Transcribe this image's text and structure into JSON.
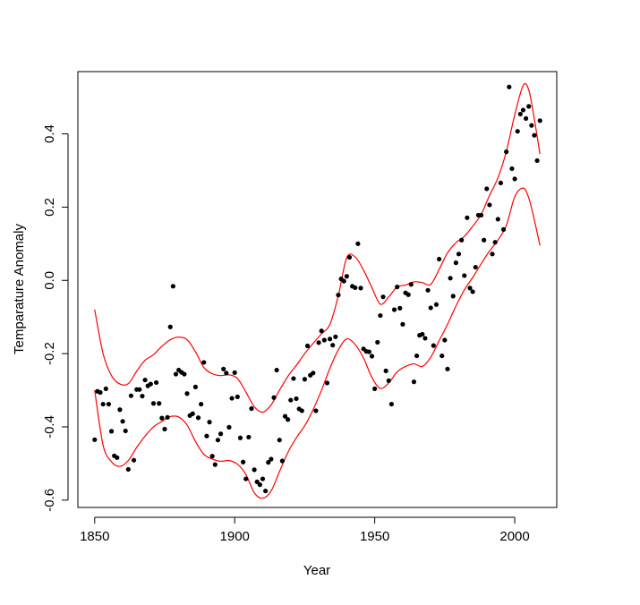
{
  "chart_data": {
    "type": "scatter",
    "title": "",
    "xlabel": "Year",
    "ylabel": "Temparature Anomaly",
    "xlim": [
      1844,
      2015
    ],
    "ylim": [
      -0.62,
      0.57
    ],
    "x_ticks": [
      1850,
      1900,
      1950,
      2000
    ],
    "x_tick_labels": [
      "1850",
      "1900",
      "1950",
      "2000"
    ],
    "y_ticks": [
      -0.6,
      -0.4,
      -0.2,
      0.0,
      0.2,
      0.4
    ],
    "y_tick_labels": [
      "-0.6",
      "-0.4",
      "-0.2",
      "0.0",
      "0.2",
      "0.4"
    ],
    "grid": false,
    "point_color": "#000000",
    "band_color": "#ff0000",
    "points": {
      "x": [
        1850,
        1851,
        1852,
        1853,
        1854,
        1855,
        1856,
        1857,
        1858,
        1859,
        1860,
        1861,
        1862,
        1863,
        1864,
        1865,
        1866,
        1867,
        1868,
        1869,
        1870,
        1871,
        1872,
        1873,
        1874,
        1875,
        1876,
        1877,
        1878,
        1879,
        1880,
        1881,
        1882,
        1883,
        1884,
        1885,
        1886,
        1887,
        1888,
        1889,
        1890,
        1891,
        1892,
        1893,
        1894,
        1895,
        1896,
        1897,
        1898,
        1899,
        1900,
        1901,
        1902,
        1903,
        1904,
        1905,
        1906,
        1907,
        1908,
        1909,
        1910,
        1911,
        1912,
        1913,
        1914,
        1915,
        1916,
        1917,
        1918,
        1919,
        1920,
        1921,
        1922,
        1923,
        1924,
        1925,
        1926,
        1927,
        1928,
        1929,
        1930,
        1931,
        1932,
        1933,
        1934,
        1935,
        1936,
        1937,
        1938,
        1939,
        1940,
        1941,
        1942,
        1943,
        1944,
        1945,
        1946,
        1947,
        1948,
        1949,
        1950,
        1951,
        1952,
        1953,
        1954,
        1955,
        1956,
        1957,
        1958,
        1959,
        1960,
        1961,
        1962,
        1963,
        1964,
        1965,
        1966,
        1967,
        1968,
        1969,
        1970,
        1971,
        1972,
        1973,
        1974,
        1975,
        1976,
        1977,
        1978,
        1979,
        1980,
        1981,
        1982,
        1983,
        1984,
        1985,
        1986,
        1987,
        1988,
        1989,
        1990,
        1991,
        1992,
        1993,
        1994,
        1995,
        1996,
        1997,
        1998,
        1999,
        2000,
        2001,
        2002,
        2003,
        2004,
        2005,
        2006,
        2007,
        2008,
        2009
      ],
      "y": [
        -0.435,
        -0.303,
        -0.306,
        -0.338,
        -0.296,
        -0.338,
        -0.412,
        -0.479,
        -0.484,
        -0.353,
        -0.385,
        -0.411,
        -0.516,
        -0.315,
        -0.491,
        -0.298,
        -0.298,
        -0.316,
        -0.272,
        -0.288,
        -0.283,
        -0.336,
        -0.279,
        -0.336,
        -0.376,
        -0.406,
        -0.374,
        -0.127,
        -0.016,
        -0.256,
        -0.245,
        -0.251,
        -0.256,
        -0.309,
        -0.369,
        -0.364,
        -0.291,
        -0.375,
        -0.338,
        -0.224,
        -0.425,
        -0.387,
        -0.48,
        -0.503,
        -0.436,
        -0.419,
        -0.242,
        -0.253,
        -0.401,
        -0.322,
        -0.252,
        -0.318,
        -0.43,
        -0.496,
        -0.542,
        -0.428,
        -0.35,
        -0.517,
        -0.55,
        -0.558,
        -0.542,
        -0.575,
        -0.497,
        -0.488,
        -0.32,
        -0.245,
        -0.436,
        -0.493,
        -0.371,
        -0.38,
        -0.327,
        -0.268,
        -0.323,
        -0.351,
        -0.356,
        -0.27,
        -0.179,
        -0.259,
        -0.253,
        -0.356,
        -0.17,
        -0.138,
        -0.163,
        -0.28,
        -0.16,
        -0.177,
        -0.154,
        -0.04,
        0.004,
        -0.002,
        0.011,
        0.063,
        -0.016,
        -0.02,
        0.1,
        -0.021,
        -0.187,
        -0.194,
        -0.195,
        -0.207,
        -0.296,
        -0.169,
        -0.096,
        -0.045,
        -0.247,
        -0.274,
        -0.338,
        -0.08,
        -0.018,
        -0.076,
        -0.12,
        -0.034,
        -0.039,
        -0.011,
        -0.277,
        -0.206,
        -0.15,
        -0.147,
        -0.158,
        -0.027,
        -0.075,
        -0.178,
        -0.066,
        0.058,
        -0.206,
        -0.163,
        -0.242,
        0.006,
        -0.043,
        0.048,
        0.072,
        0.11,
        0.013,
        0.171,
        -0.021,
        -0.031,
        0.036,
        0.178,
        0.178,
        0.11,
        0.25,
        0.206,
        0.072,
        0.104,
        0.167,
        0.266,
        0.139,
        0.351,
        0.528,
        0.305,
        0.277,
        0.407,
        0.454,
        0.465,
        0.442,
        0.475,
        0.423,
        0.396,
        0.327,
        0.436
      ]
    },
    "band_upper": {
      "x": [
        1850,
        1853,
        1856,
        1859,
        1862,
        1865,
        1868,
        1871,
        1874,
        1877,
        1880,
        1883,
        1886,
        1889,
        1892,
        1895,
        1898,
        1901,
        1904,
        1907,
        1910,
        1913,
        1916,
        1919,
        1922,
        1925,
        1928,
        1931,
        1934,
        1937,
        1940,
        1943,
        1946,
        1949,
        1952,
        1955,
        1958,
        1961,
        1964,
        1967,
        1970,
        1973,
        1976,
        1979,
        1982,
        1985,
        1988,
        1991,
        1994,
        1997,
        2000,
        2003,
        2005,
        2007,
        2009
      ],
      "y": [
        -0.08,
        -0.2,
        -0.26,
        -0.283,
        -0.282,
        -0.248,
        -0.218,
        -0.203,
        -0.18,
        -0.162,
        -0.155,
        -0.162,
        -0.195,
        -0.238,
        -0.255,
        -0.26,
        -0.258,
        -0.268,
        -0.305,
        -0.345,
        -0.36,
        -0.34,
        -0.3,
        -0.262,
        -0.232,
        -0.2,
        -0.172,
        -0.146,
        -0.12,
        -0.042,
        0.062,
        0.064,
        0.028,
        -0.02,
        -0.065,
        -0.045,
        -0.018,
        -0.013,
        -0.004,
        -0.006,
        -0.011,
        0.03,
        0.075,
        0.103,
        0.12,
        0.148,
        0.18,
        0.232,
        0.28,
        0.352,
        0.452,
        0.532,
        0.52,
        0.44,
        0.345
      ]
    },
    "band_lower": {
      "x": [
        1850,
        1853,
        1856,
        1859,
        1862,
        1865,
        1868,
        1871,
        1874,
        1877,
        1880,
        1883,
        1886,
        1889,
        1892,
        1895,
        1898,
        1901,
        1904,
        1907,
        1910,
        1913,
        1916,
        1919,
        1922,
        1925,
        1928,
        1931,
        1934,
        1937,
        1940,
        1943,
        1946,
        1949,
        1952,
        1955,
        1958,
        1961,
        1964,
        1967,
        1970,
        1973,
        1976,
        1979,
        1982,
        1985,
        1988,
        1991,
        1994,
        1997,
        2000,
        2003,
        2005,
        2007,
        2009
      ],
      "y": [
        -0.3,
        -0.45,
        -0.495,
        -0.508,
        -0.492,
        -0.456,
        -0.425,
        -0.4,
        -0.385,
        -0.372,
        -0.373,
        -0.395,
        -0.44,
        -0.475,
        -0.488,
        -0.494,
        -0.492,
        -0.502,
        -0.53,
        -0.58,
        -0.595,
        -0.575,
        -0.522,
        -0.47,
        -0.43,
        -0.397,
        -0.353,
        -0.3,
        -0.24,
        -0.19,
        -0.16,
        -0.175,
        -0.212,
        -0.265,
        -0.295,
        -0.28,
        -0.25,
        -0.235,
        -0.228,
        -0.235,
        -0.21,
        -0.165,
        -0.12,
        -0.07,
        -0.026,
        0.008,
        0.045,
        0.08,
        0.11,
        0.15,
        0.228,
        0.252,
        0.225,
        0.165,
        0.095
      ]
    }
  }
}
